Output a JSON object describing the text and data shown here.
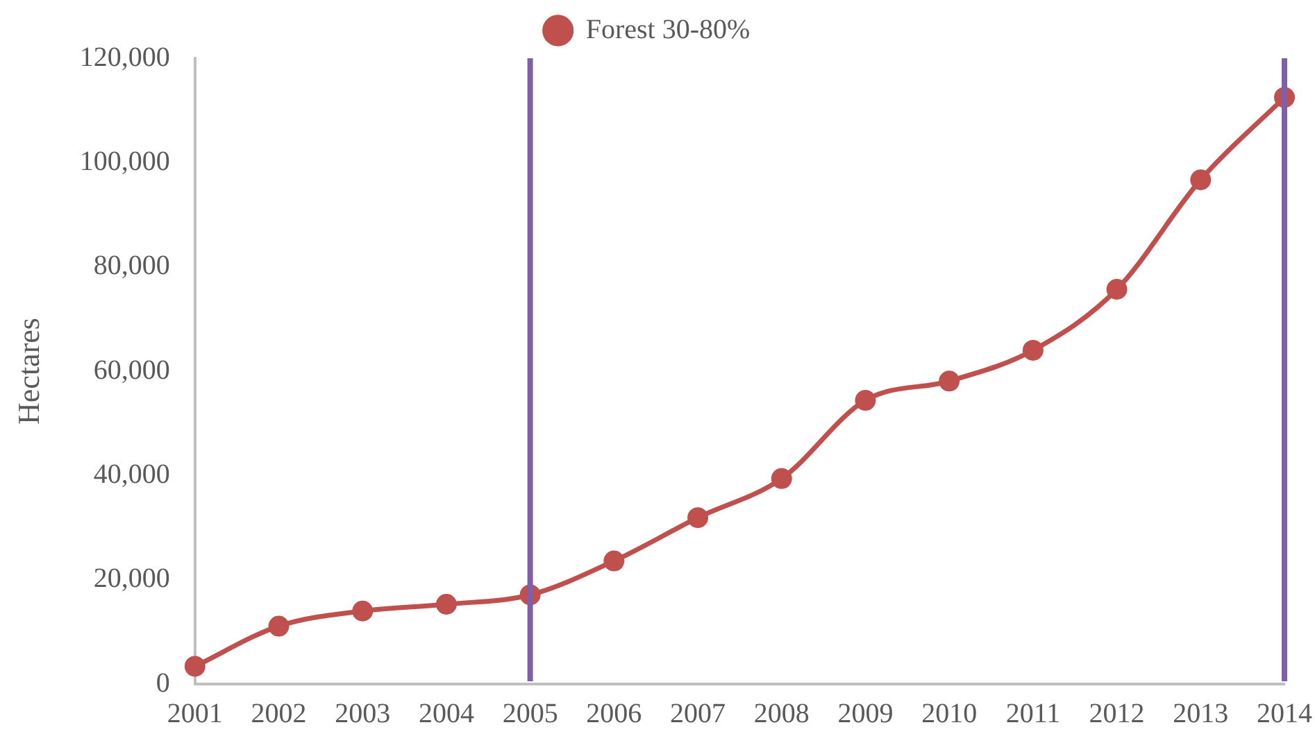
{
  "chart_data": {
    "type": "line",
    "ylabel": "Hectares",
    "categories": [
      "2001",
      "2002",
      "2003",
      "2004",
      "2005",
      "2006",
      "2007",
      "2008",
      "2009",
      "2010",
      "2011",
      "2012",
      "2013",
      "2014"
    ],
    "series": [
      {
        "name": "Forest 30-80%",
        "color": "#c0504d",
        "values": [
          3400,
          11100,
          14000,
          15300,
          17100,
          23600,
          31900,
          39400,
          54400,
          58100,
          64000,
          75700,
          96700,
          112500
        ]
      }
    ],
    "ylim": [
      0,
      120000
    ],
    "yticks": [
      {
        "value": 0,
        "label": "0"
      },
      {
        "value": 20000,
        "label": "20,000"
      },
      {
        "value": 40000,
        "label": "40,000"
      },
      {
        "value": 60000,
        "label": "60,000"
      },
      {
        "value": 80000,
        "label": "80,000"
      },
      {
        "value": 100000,
        "label": "100,000"
      },
      {
        "value": 120000,
        "label": "120,000"
      }
    ],
    "ref_lines": [
      {
        "axis": "x",
        "value": "2005",
        "color": "#7f5fa8"
      },
      {
        "axis": "x",
        "value": "2014",
        "color": "#7f5fa8"
      }
    ],
    "grid": false,
    "legend": "top",
    "marker": "circle",
    "line_style": "solid"
  }
}
